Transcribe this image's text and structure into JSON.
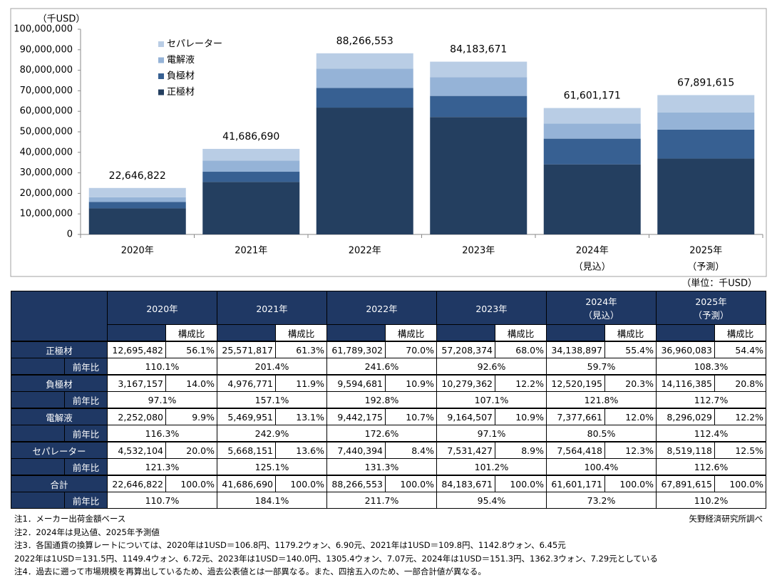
{
  "chart_data": {
    "type": "stacked_bar",
    "y_label": "（千USD）",
    "categories": [
      "2020年",
      "2021年",
      "2022年",
      "2023年",
      "2024年",
      "2025年"
    ],
    "category_notes": [
      null,
      null,
      null,
      null,
      "（見込）",
      "（予測）"
    ],
    "series": [
      {
        "name": "正極材",
        "color": "#243f60",
        "values": [
          12695482,
          25571817,
          61789302,
          57208374,
          34138897,
          36960083
        ]
      },
      {
        "name": "負極材",
        "color": "#376092",
        "values": [
          3167157,
          4976771,
          9594681,
          10279362,
          12520195,
          14116385
        ]
      },
      {
        "name": "電解液",
        "color": "#95b3d7",
        "values": [
          2252080,
          5469951,
          9442175,
          9164507,
          7377661,
          8296029
        ]
      },
      {
        "name": "セパレーター",
        "color": "#b9cde5",
        "values": [
          4532104,
          5668151,
          7440394,
          7531427,
          7564418,
          8519118
        ]
      }
    ],
    "totals": {
      "values": [
        22646822,
        41686690,
        88266553,
        84183671,
        61601171,
        67891615
      ],
      "value_labels": [
        "22,646,822",
        "41,686,690",
        "88,266,553",
        "84,183,671",
        "61,601,171",
        "67,891,615"
      ]
    },
    "ylim": [
      0,
      100000000
    ],
    "yticks": [
      0,
      {
        "value": 10000000,
        "label": "10,000,000"
      },
      {
        "value": 20000000,
        "label": "20,000,000"
      },
      {
        "value": 30000000,
        "label": "30,000,000"
      },
      {
        "value": 40000000,
        "label": "40,000,000"
      },
      {
        "value": 50000000,
        "label": "50,000,000"
      },
      {
        "value": 60000000,
        "label": "60,000,000"
      },
      {
        "value": 70000000,
        "label": "70,000,000"
      },
      {
        "value": 80000000,
        "label": "80,000,000"
      },
      {
        "value": 90000000,
        "label": "90,000,000"
      },
      {
        "value": 100000000,
        "label": "100,000,000"
      }
    ],
    "grid": false,
    "legend": "upper-left"
  },
  "table": {
    "unit": "（単位：千USD）",
    "years": [
      "2020年",
      "2021年",
      "2022年",
      "2023年",
      "2024年",
      "2025年"
    ],
    "year_notes": [
      null,
      null,
      null,
      null,
      "（見込）",
      "（予測）"
    ],
    "ratio_header": "構成比",
    "rows": [
      {
        "label": "正極材",
        "cells": [
          [
            "12,695,482",
            "56.1%"
          ],
          [
            "25,571,817",
            "61.3%"
          ],
          [
            "61,789,302",
            "70.0%"
          ],
          [
            "57,208,374",
            "68.0%"
          ],
          [
            "34,138,897",
            "55.4%"
          ],
          [
            "36,960,083",
            "54.4%"
          ]
        ],
        "yoy_label": "前年比",
        "yoy": [
          "110.1%",
          "201.4%",
          "241.6%",
          "92.6%",
          "59.7%",
          "108.3%"
        ]
      },
      {
        "label": "負極材",
        "cells": [
          [
            "3,167,157",
            "14.0%"
          ],
          [
            "4,976,771",
            "11.9%"
          ],
          [
            "9,594,681",
            "10.9%"
          ],
          [
            "10,279,362",
            "12.2%"
          ],
          [
            "12,520,195",
            "20.3%"
          ],
          [
            "14,116,385",
            "20.8%"
          ]
        ],
        "yoy_label": "前年比",
        "yoy": [
          "97.1%",
          "157.1%",
          "192.8%",
          "107.1%",
          "121.8%",
          "112.7%"
        ]
      },
      {
        "label": "電解液",
        "cells": [
          [
            "2,252,080",
            "9.9%"
          ],
          [
            "5,469,951",
            "13.1%"
          ],
          [
            "9,442,175",
            "10.7%"
          ],
          [
            "9,164,507",
            "10.9%"
          ],
          [
            "7,377,661",
            "12.0%"
          ],
          [
            "8,296,029",
            "12.2%"
          ]
        ],
        "yoy_label": "前年比",
        "yoy": [
          "116.3%",
          "242.9%",
          "172.6%",
          "97.1%",
          "80.5%",
          "112.4%"
        ]
      },
      {
        "label": "セパレーター",
        "cells": [
          [
            "4,532,104",
            "20.0%"
          ],
          [
            "5,668,151",
            "13.6%"
          ],
          [
            "7,440,394",
            "8.4%"
          ],
          [
            "7,531,427",
            "8.9%"
          ],
          [
            "7,564,418",
            "12.3%"
          ],
          [
            "8,519,118",
            "12.5%"
          ]
        ],
        "yoy_label": "前年比",
        "yoy": [
          "121.3%",
          "125.1%",
          "131.3%",
          "101.2%",
          "100.4%",
          "112.6%"
        ]
      },
      {
        "label": "合計",
        "cells": [
          [
            "22,646,822",
            "100.0%"
          ],
          [
            "41,686,690",
            "100.0%"
          ],
          [
            "88,266,553",
            "100.0%"
          ],
          [
            "84,183,671",
            "100.0%"
          ],
          [
            "61,601,171",
            "100.0%"
          ],
          [
            "67,891,615",
            "100.0%"
          ]
        ],
        "yoy_label": "前年比",
        "yoy": [
          "110.7%",
          "184.1%",
          "211.7%",
          "95.4%",
          "73.2%",
          "110.2%"
        ]
      }
    ]
  },
  "notes": [
    "注1．メーカー出荷金額ベース",
    "注2．2024年は見込値、2025年予測値",
    "注3．各国通貨の換算レートについては、2020年は1USD＝106.8円、1179.2ウォン、6.90元、2021年は1USD＝109.8円、1142.8ウォン、6.45元",
    "2022年は1USD＝131.5円、1149.4ウォン、6.72元、2023年は1USD＝140.0円、1305.4ウォン、7.07元、2024年は1USD＝151.3円、1362.3ウォン、7.29元としている",
    "注4．過去に遡って市場規模を再算出しているため、過去公表値とは一部異なる。また、四捨五入のため、一部合計値が異なる。"
  ],
  "source": "矢野経済研究所調べ"
}
